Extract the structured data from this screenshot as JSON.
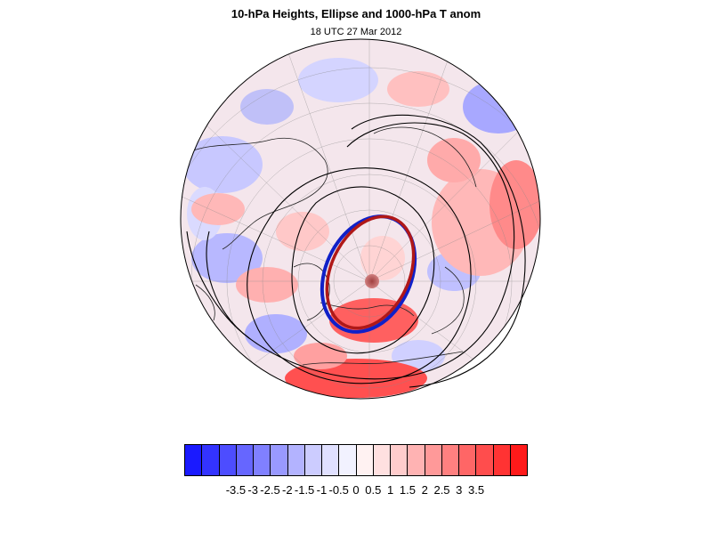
{
  "header": {
    "title": "10-hPa Heights, Ellipse and 1000-hPa T anom",
    "subtitle": "18 UTC 27 Mar 2012"
  },
  "map": {
    "projection": "polar-stereographic-north",
    "overlays": [
      "10-hPa height contours",
      "vortex ellipse (blue)",
      "vortex ellipse (red)",
      "coastlines"
    ],
    "colors": {
      "warm": "#ff0000",
      "cold": "#0000ff",
      "ellipse_blue": "#1020c8",
      "ellipse_red": "#b01818",
      "contour": "#000000"
    }
  },
  "colorbar": {
    "colors": [
      "#1a1aff",
      "#3333ff",
      "#4d4dff",
      "#6666ff",
      "#8080ff",
      "#9999ff",
      "#b3b3ff",
      "#ccccff",
      "#e0e0ff",
      "#f2f2ff",
      "#fff2f2",
      "#ffe0e0",
      "#ffcccc",
      "#ffb3b3",
      "#ff9999",
      "#ff8080",
      "#ff6666",
      "#ff4d4d",
      "#ff3333",
      "#ff1a1a"
    ],
    "labels": [
      "-3.5",
      "-3",
      "-2.5",
      "-2",
      "-1.5",
      "-1",
      "-0.5",
      "0",
      "0.5",
      "1",
      "1.5",
      "2",
      "2.5",
      "3",
      "3.5"
    ]
  }
}
